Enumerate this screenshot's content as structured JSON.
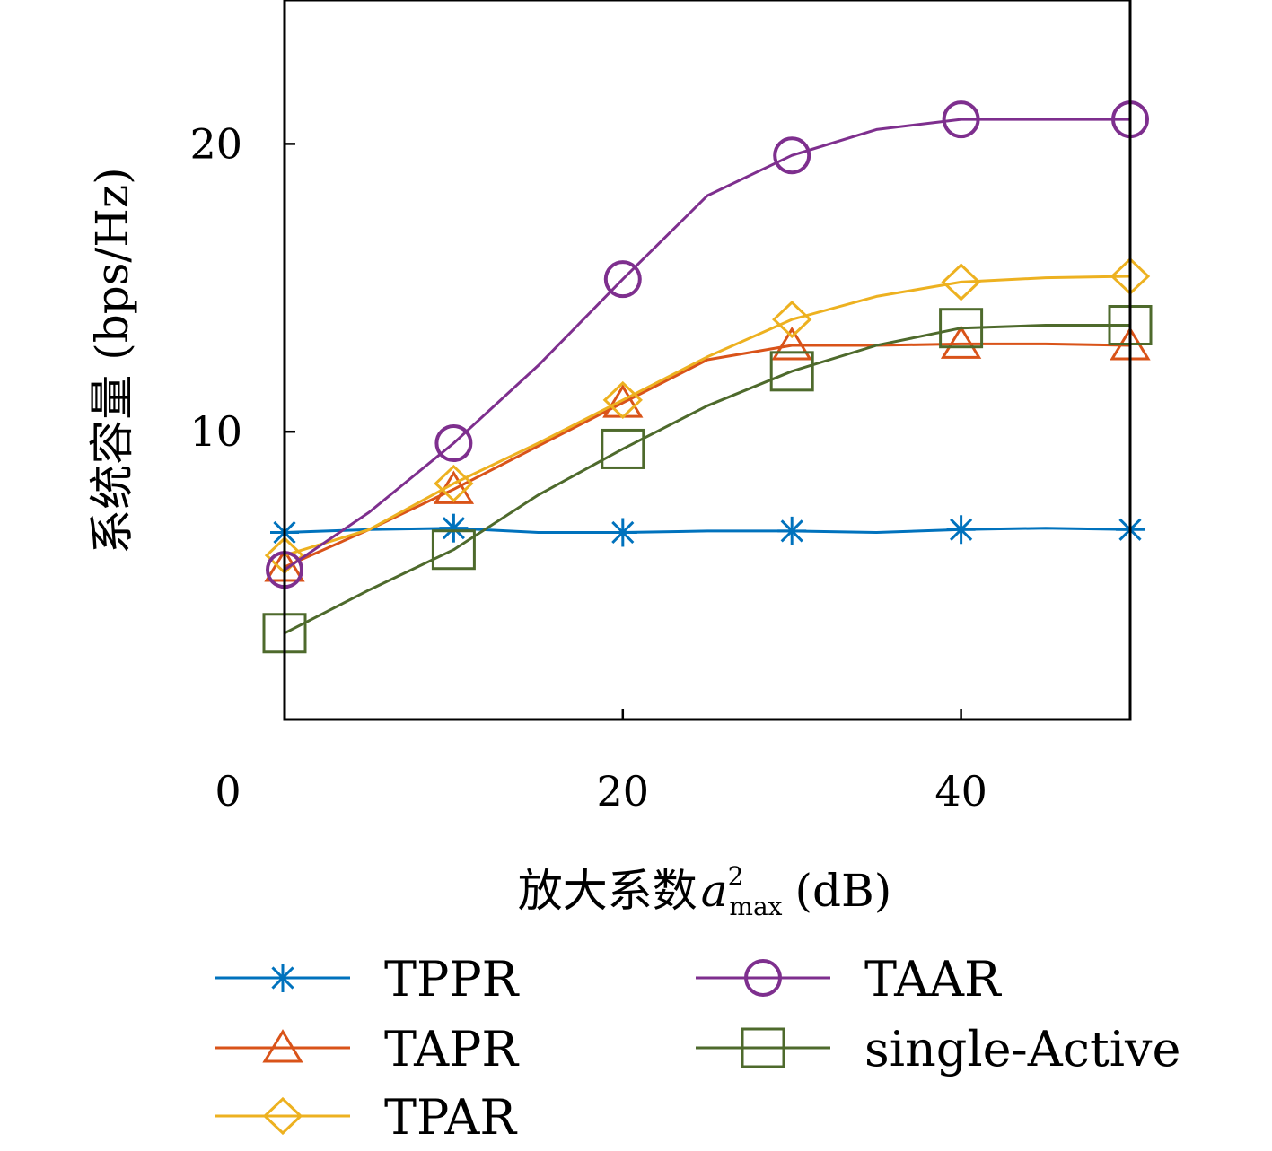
{
  "chart_data": {
    "type": "line",
    "title": "",
    "xlabel_prefix": "放大系数",
    "xlabel_var": "a",
    "xlabel_sup": "2",
    "xlabel_sub": "max",
    "xlabel_unit": "(dB)",
    "ylabel": "系统容量 (bps/Hz)",
    "xlim": [
      0,
      50
    ],
    "ylim": [
      0,
      25
    ],
    "x_ticks": [
      0,
      20,
      40
    ],
    "y_ticks": [
      10,
      20
    ],
    "grid": false,
    "legend_position": "bottom",
    "series": [
      {
        "name": "TPPR",
        "color": "#0072BD",
        "marker": "asterisk",
        "x": [
          0,
          5,
          10,
          15,
          20,
          25,
          30,
          35,
          40,
          45,
          50
        ],
        "y": [
          6.5,
          6.6,
          6.65,
          6.5,
          6.5,
          6.55,
          6.55,
          6.5,
          6.6,
          6.65,
          6.6
        ],
        "marker_x": [
          0,
          10,
          20,
          30,
          40,
          50
        ],
        "marker_y": [
          6.5,
          6.65,
          6.5,
          6.55,
          6.6,
          6.6
        ]
      },
      {
        "name": "TAPR",
        "color": "#D95319",
        "marker": "triangle",
        "x": [
          0,
          5,
          10,
          15,
          20,
          25,
          30,
          35,
          40,
          45,
          50
        ],
        "y": [
          5.3,
          6.6,
          8.0,
          9.5,
          11.0,
          12.5,
          13.0,
          13.0,
          13.05,
          13.05,
          13.0
        ],
        "marker_x": [
          0,
          10,
          20,
          30,
          40,
          50
        ],
        "marker_y": [
          5.3,
          8.0,
          11.0,
          13.0,
          13.05,
          13.0
        ]
      },
      {
        "name": "TPAR",
        "color": "#EDB120",
        "marker": "diamond",
        "x": [
          0,
          5,
          10,
          15,
          20,
          25,
          30,
          35,
          40,
          45,
          50
        ],
        "y": [
          5.7,
          6.6,
          8.2,
          9.6,
          11.1,
          12.6,
          13.9,
          14.7,
          15.2,
          15.35,
          15.4
        ],
        "marker_x": [
          0,
          10,
          20,
          30,
          40,
          50
        ],
        "marker_y": [
          5.7,
          8.2,
          11.1,
          13.9,
          15.2,
          15.4
        ]
      },
      {
        "name": "TAAR",
        "color": "#7E2F8E",
        "marker": "circle",
        "x": [
          0,
          5,
          10,
          15,
          20,
          25,
          30,
          35,
          40,
          45,
          50
        ],
        "y": [
          5.2,
          7.2,
          9.6,
          12.3,
          15.3,
          18.2,
          19.6,
          20.5,
          20.85,
          20.85,
          20.85
        ],
        "marker_x": [
          0,
          10,
          20,
          30,
          40,
          50
        ],
        "marker_y": [
          5.2,
          9.6,
          15.3,
          19.6,
          20.85,
          20.85
        ]
      },
      {
        "name": "single-Active",
        "color": "#4E6A2C",
        "marker": "square",
        "x": [
          0,
          5,
          10,
          15,
          20,
          25,
          30,
          35,
          40,
          45,
          50
        ],
        "y": [
          3.0,
          4.5,
          5.9,
          7.8,
          9.4,
          10.9,
          12.1,
          13.0,
          13.6,
          13.7,
          13.7
        ],
        "marker_x": [
          0,
          10,
          20,
          30,
          40,
          50
        ],
        "marker_y": [
          3.0,
          5.9,
          9.4,
          12.1,
          13.6,
          13.7
        ]
      }
    ]
  }
}
